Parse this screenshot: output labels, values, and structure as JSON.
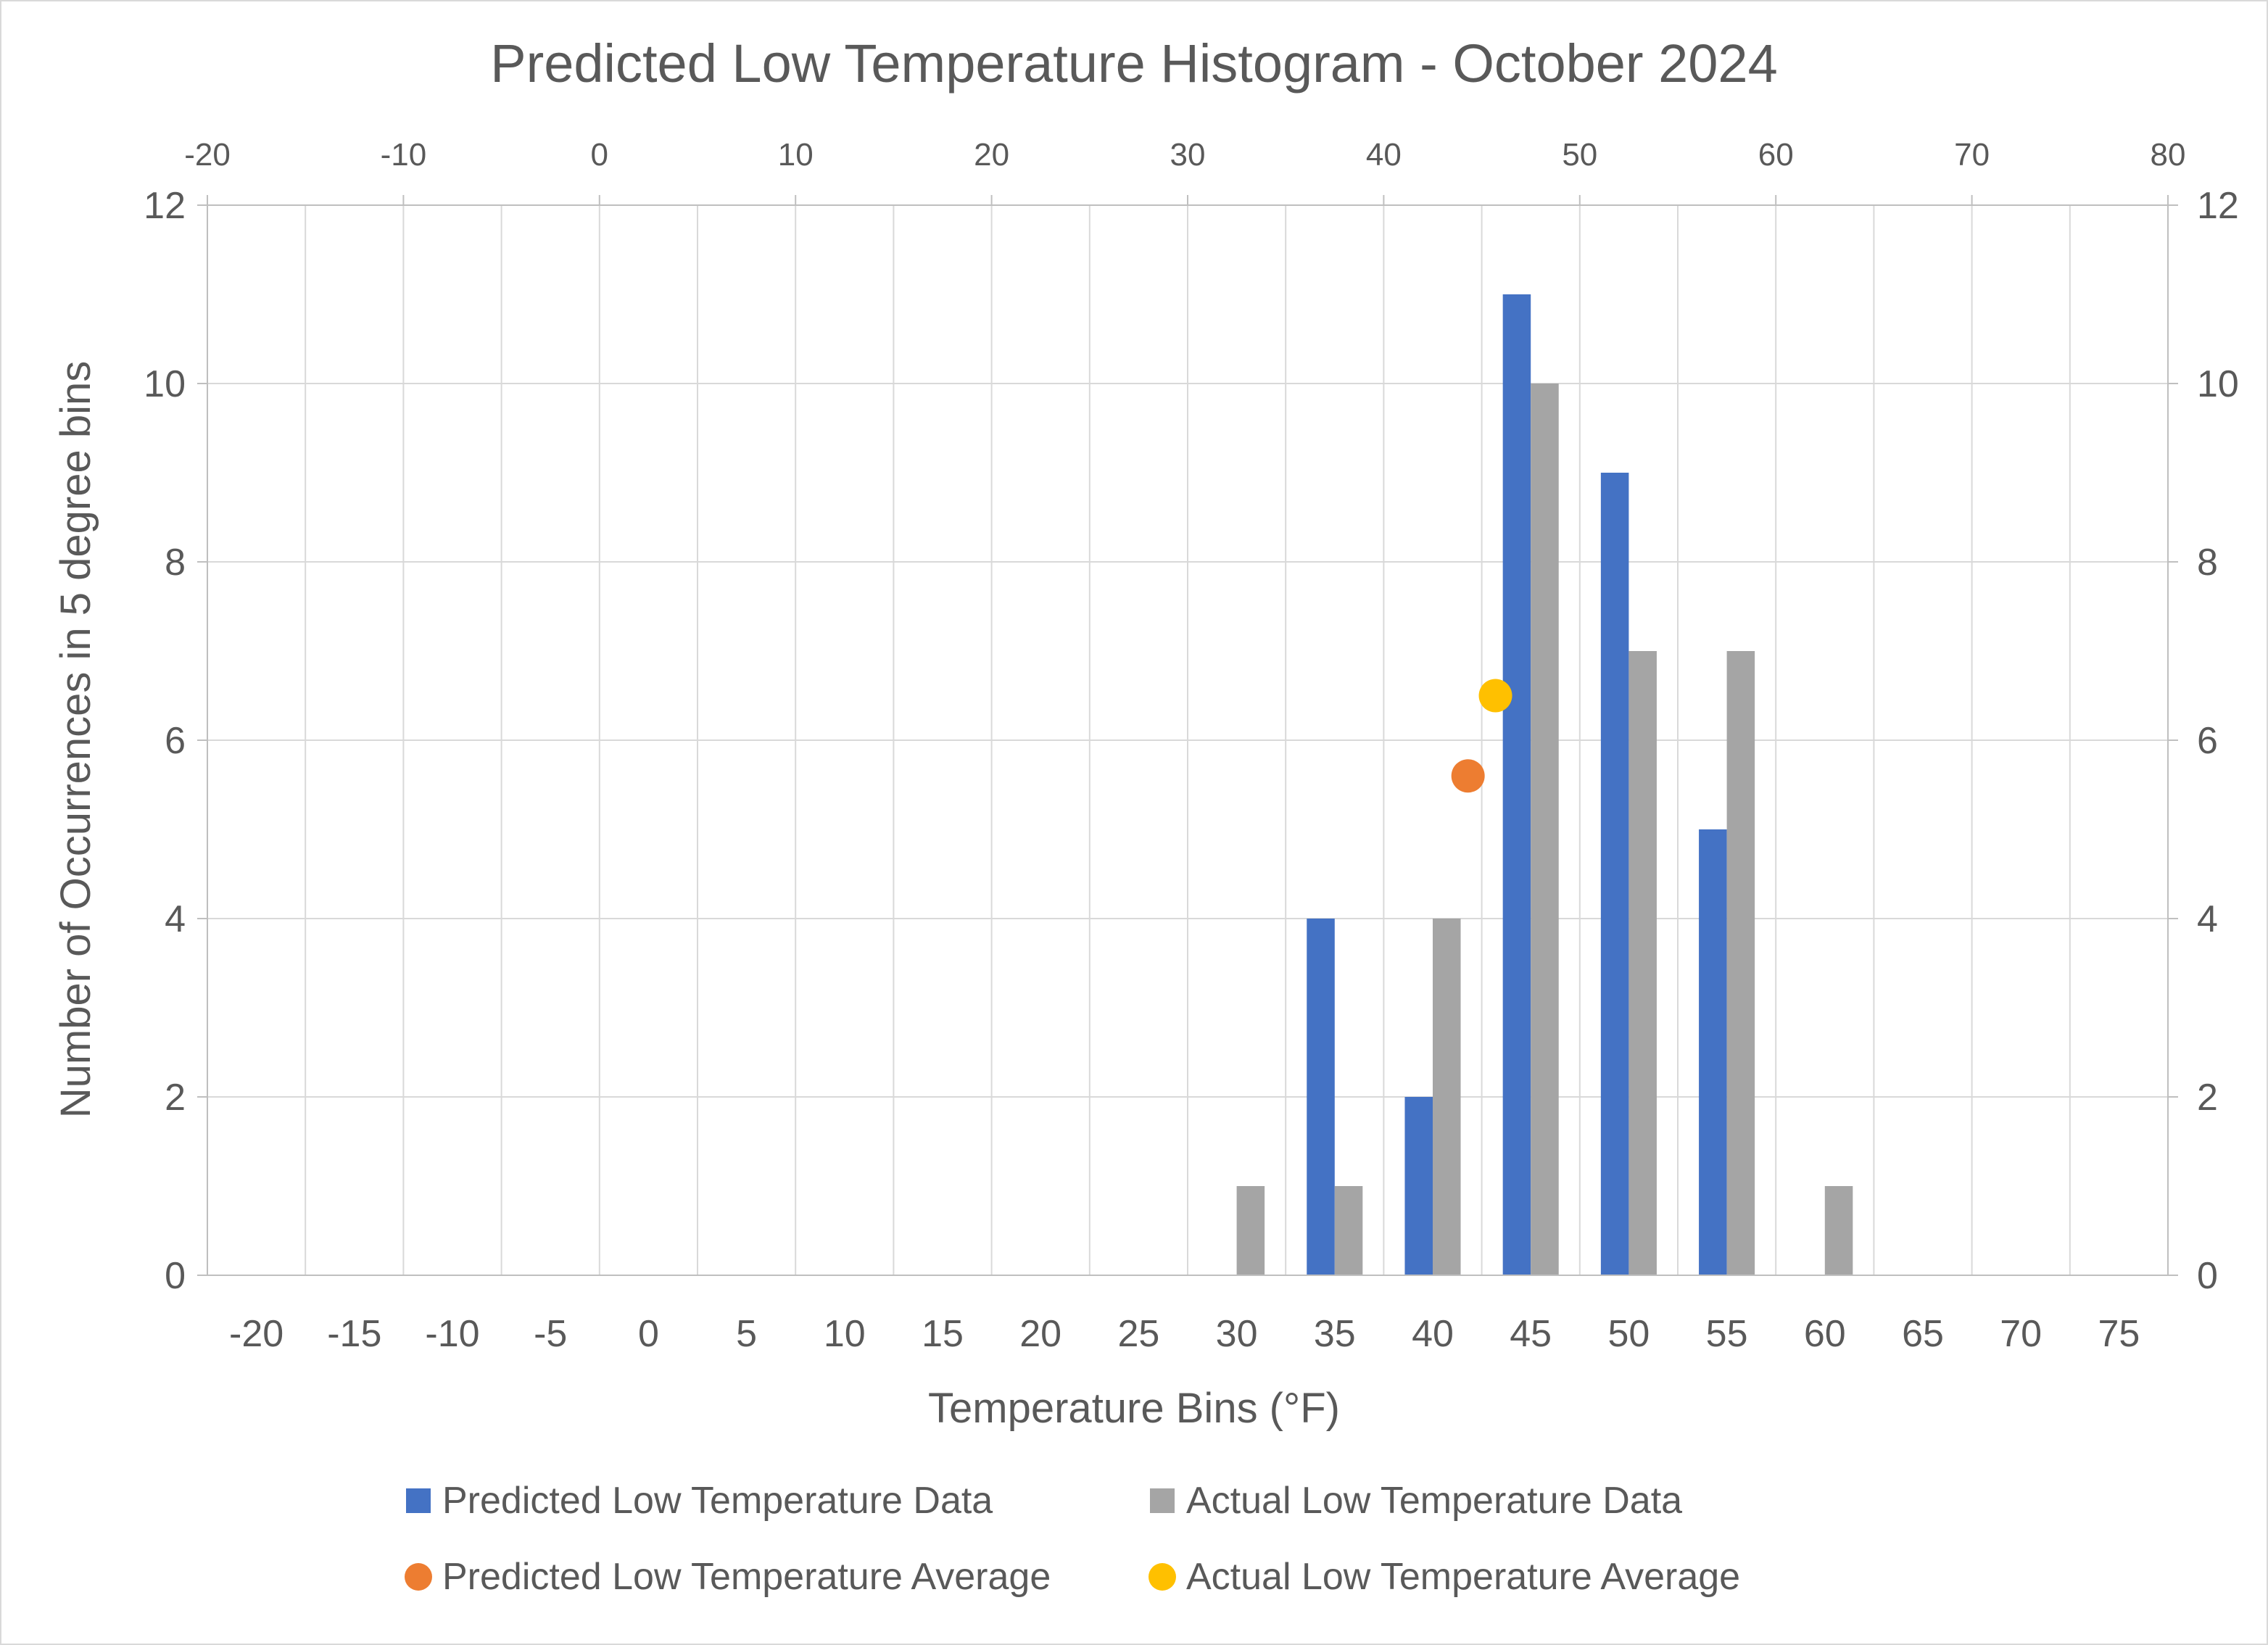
{
  "chart_data": {
    "type": "bar",
    "title": "Predicted Low Temperature Histogram - October 2024",
    "xlabel": "Temperature Bins (°F)",
    "ylabel": "Number of Occurrences in 5 degree bins",
    "categories": [
      "-20",
      "-15",
      "-10",
      "-5",
      "0",
      "5",
      "10",
      "15",
      "20",
      "25",
      "30",
      "35",
      "40",
      "45",
      "50",
      "55",
      "60",
      "65",
      "70",
      "75"
    ],
    "ylim": [
      0,
      12
    ],
    "yticks": [
      "0",
      "2",
      "4",
      "6",
      "8",
      "10",
      "12"
    ],
    "secondary_y_ticks": [
      "0",
      "2",
      "4",
      "6",
      "8",
      "10",
      "12"
    ],
    "top_x_ticks": [
      "-20",
      "-10",
      "0",
      "10",
      "20",
      "30",
      "40",
      "50",
      "60",
      "70",
      "80"
    ],
    "top_xlim": [
      -20,
      80
    ],
    "grid": true,
    "legend_position": "bottom",
    "series": [
      {
        "name": "Predicted Low Temperature Data",
        "kind": "bar",
        "color": "#4472C4",
        "values": [
          0,
          0,
          0,
          0,
          0,
          0,
          0,
          0,
          0,
          0,
          0,
          4,
          2,
          11,
          9,
          5,
          0,
          0,
          0,
          0
        ]
      },
      {
        "name": "Actual Low Temperature Data",
        "kind": "bar",
        "color": "#A5A5A5",
        "values": [
          0,
          0,
          0,
          0,
          0,
          0,
          0,
          0,
          0,
          0,
          1,
          1,
          4,
          10,
          7,
          7,
          1,
          0,
          0,
          0
        ]
      },
      {
        "name": "Predicted Low Temperature Average",
        "kind": "scatter",
        "color": "#ED7D31",
        "x": 44.3,
        "y": 5.6
      },
      {
        "name": "Actual Low Temperature Average",
        "kind": "scatter",
        "color": "#FFC000",
        "x": 45.7,
        "y": 6.5
      }
    ]
  }
}
